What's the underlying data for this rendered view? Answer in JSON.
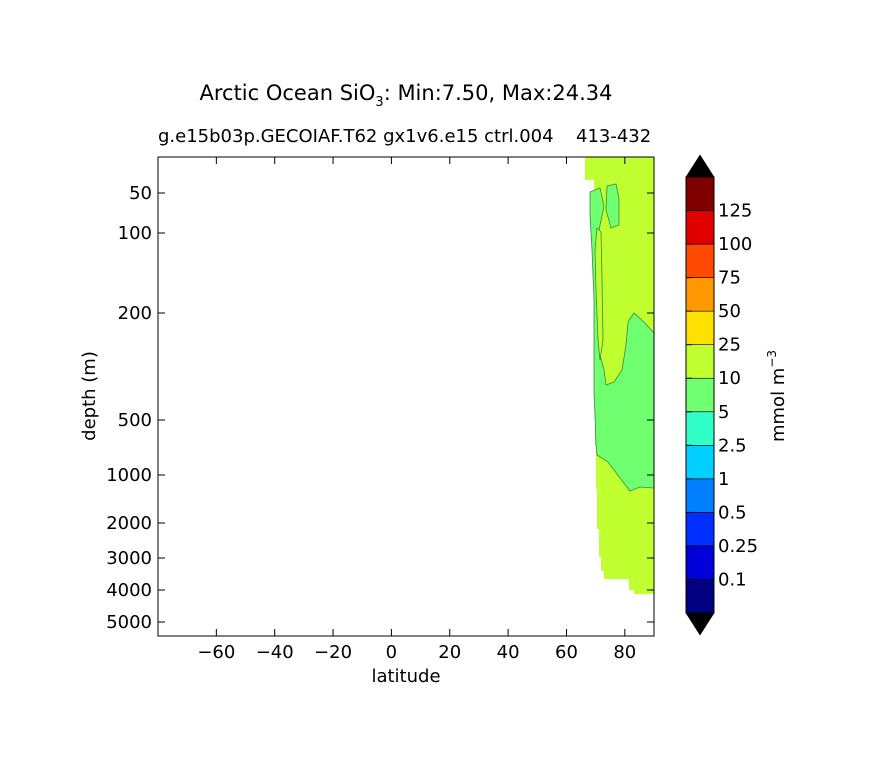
{
  "chart_data": {
    "type": "contourf",
    "title": "Arctic Ocean SiO",
    "title_subscript": "3",
    "title_suffix": ": Min:7.50, Max:24.34",
    "subtitle": "g.e15b03p.GECOIAF.T62 gx1v6.e15 ctrl.004",
    "subtitle_overlap": "413-432",
    "xlabel": "latitude",
    "ylabel": "depth (m)",
    "xlim": [
      -80,
      90
    ],
    "x_ticks": [
      -60,
      -40,
      -20,
      0,
      20,
      40,
      60,
      80
    ],
    "x_tick_labels": [
      "−60",
      "−40",
      "−20",
      "0",
      "20",
      "40",
      "60",
      "80"
    ],
    "y_scale": "log-like (inverted)",
    "ylim": [
      5500,
      20
    ],
    "y_ticks": [
      50,
      100,
      200,
      500,
      1000,
      2000,
      3000,
      4000,
      5000
    ],
    "y_tick_labels": [
      "50",
      "100",
      "200",
      "500",
      "1000",
      "2000",
      "3000",
      "4000",
      "5000"
    ],
    "colorbar": {
      "label_main": "mmol m",
      "label_exponent": "−3",
      "levels": [
        0.1,
        0.25,
        0.5,
        1,
        2.5,
        5,
        10,
        25,
        50,
        75,
        100,
        125
      ],
      "level_labels": [
        "0.1",
        "0.25",
        "0.5",
        "1",
        "2.5",
        "5",
        "10",
        "25",
        "50",
        "75",
        "100",
        "125"
      ],
      "colors": [
        "#000080",
        "#0000d8",
        "#0030ff",
        "#0080ff",
        "#00d0ff",
        "#30ffc8",
        "#70ff70",
        "#c0ff30",
        "#ffe000",
        "#ff9800",
        "#ff4800",
        "#e00000",
        "#800000"
      ],
      "extend": "both",
      "extend_min_color": "#000000",
      "extend_max_color": "#000000"
    },
    "regions": [
      {
        "name": "5-10 band",
        "value_range": [
          5,
          10
        ],
        "color": "#70ff70"
      },
      {
        "name": "10-25 band",
        "value_range": [
          10,
          25
        ],
        "color": "#c0ff30"
      }
    ]
  }
}
